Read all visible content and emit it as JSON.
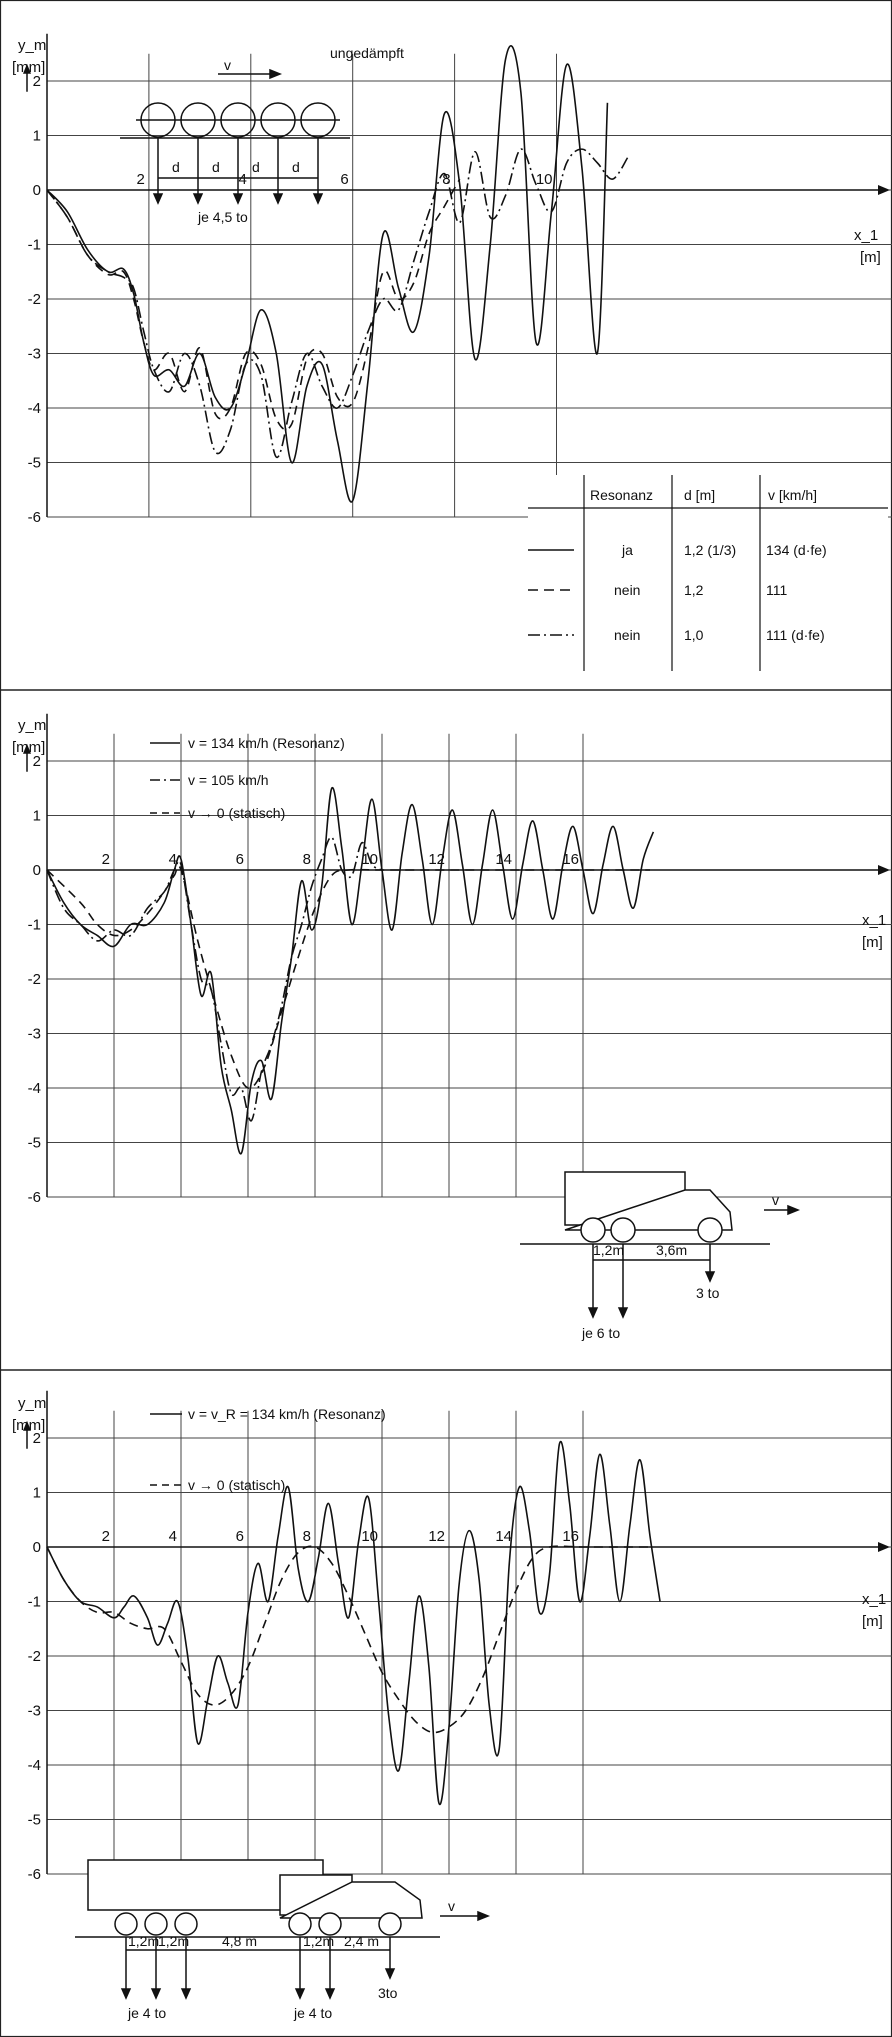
{
  "chart_data": [
    {
      "type": "line",
      "title": "ungedämpft",
      "ylabel": "y_m",
      "yunit": "[mm]",
      "xlabel": "x_1",
      "xunit": "[m]",
      "xlim": [
        0,
        11.8
      ],
      "ylim": [
        -6,
        2.5
      ],
      "x_ticks": [
        2,
        4,
        6,
        8,
        10
      ],
      "y_ticks": [
        2,
        1,
        0,
        -1,
        -2,
        -3,
        -4,
        -5,
        -6
      ],
      "grid": true,
      "series": [
        {
          "style": "solid",
          "x": [
            0,
            0.4,
            0.8,
            1.2,
            1.5,
            1.7,
            1.9,
            2.1,
            2.4,
            2.7,
            3.0,
            3.3,
            3.6,
            3.9,
            4.2,
            4.5,
            4.8,
            5.1,
            5.4,
            5.7,
            6.0,
            6.3,
            6.6,
            6.9,
            7.2,
            7.5,
            7.8,
            8.1,
            8.4,
            8.7,
            9.0,
            9.3,
            9.6,
            9.9,
            10.2,
            10.5,
            10.8,
            11.0
          ],
          "y": [
            0,
            -0.4,
            -1.1,
            -1.5,
            -1.45,
            -1.9,
            -2.8,
            -3.4,
            -3.3,
            -3.6,
            -3.0,
            -3.8,
            -4.0,
            -3.2,
            -2.2,
            -3.0,
            -5.0,
            -3.6,
            -3.2,
            -4.6,
            -5.7,
            -3.5,
            -0.8,
            -1.8,
            -2.6,
            -1.2,
            1.4,
            0.1,
            -3.1,
            -1.0,
            2.4,
            1.8,
            -2.8,
            -0.4,
            2.3,
            0.4,
            -3.0,
            1.6
          ]
        },
        {
          "style": "dashed",
          "x": [
            0,
            0.4,
            0.8,
            1.2,
            1.5,
            1.7,
            1.9,
            2.1,
            2.4,
            2.7,
            3.0,
            3.3,
            3.6,
            3.9,
            4.2,
            4.5,
            4.8,
            5.1,
            5.4,
            5.7,
            6.0,
            6.3,
            6.6,
            6.9,
            7.2,
            7.5,
            7.8,
            8.1
          ],
          "y": [
            0,
            -0.5,
            -1.2,
            -1.55,
            -1.5,
            -2.0,
            -2.8,
            -3.3,
            -3.0,
            -3.7,
            -2.9,
            -4.1,
            -4.0,
            -3.0,
            -3.2,
            -4.2,
            -4.3,
            -3.1,
            -3.0,
            -3.8,
            -3.9,
            -2.9,
            -1.5,
            -2.0,
            -1.7,
            -0.8,
            -0.3,
            0.2
          ]
        },
        {
          "style": "dashdot",
          "x": [
            0,
            0.4,
            0.8,
            1.2,
            1.5,
            1.7,
            1.9,
            2.1,
            2.4,
            2.7,
            3.0,
            3.3,
            3.6,
            3.9,
            4.2,
            4.5,
            4.8,
            5.1,
            5.4,
            5.7,
            6.0,
            6.3,
            6.6,
            6.9,
            7.2,
            7.5,
            7.8,
            8.1,
            8.4,
            8.7,
            9.0,
            9.3,
            9.6,
            9.9,
            10.2,
            10.5,
            10.8,
            11.1,
            11.4
          ],
          "y": [
            0,
            -0.5,
            -1.2,
            -1.5,
            -1.6,
            -1.8,
            -2.6,
            -3.3,
            -3.7,
            -3.0,
            -3.6,
            -4.8,
            -4.4,
            -3.2,
            -3.4,
            -4.9,
            -3.9,
            -3.0,
            -3.6,
            -4.0,
            -3.4,
            -2.6,
            -2.0,
            -2.2,
            -1.3,
            -0.4,
            0.3,
            -0.6,
            0.7,
            -0.5,
            -0.1,
            0.75,
            0.1,
            -0.4,
            0.5,
            0.75,
            0.5,
            0.2,
            0.6
          ]
        }
      ],
      "legend_table": {
        "headers": [
          "Resonanz",
          "d [m]",
          "v [km/h]"
        ],
        "rows": [
          {
            "style": "solid",
            "cells": [
              "ja",
              "1,2 (1/3)",
              "134 (d·fe)"
            ]
          },
          {
            "style": "dashed",
            "cells": [
              "nein",
              "1,2",
              "111"
            ]
          },
          {
            "style": "dashdot",
            "cells": [
              "nein",
              "1,0",
              "111 (d·fe)"
            ]
          }
        ]
      },
      "inset": {
        "arrow_label": "v",
        "axle_label": "d",
        "load_label": "je 4,5 to"
      }
    },
    {
      "type": "line",
      "ylabel": "y_m",
      "yunit": "[mm]",
      "xlabel": "x_1",
      "xunit": "[m]",
      "xlim": [
        0,
        18.3
      ],
      "ylim": [
        -6,
        2.5
      ],
      "x_ticks": [
        2,
        4,
        6,
        8,
        10,
        12,
        14,
        16
      ],
      "y_ticks": [
        2,
        1,
        0,
        -1,
        -2,
        -3,
        -4,
        -5,
        -6
      ],
      "grid": true,
      "series": [
        {
          "name": "v = 134 km/h (Resonanz)",
          "style": "solid",
          "x": [
            0,
            0.5,
            1.0,
            1.5,
            2.0,
            2.5,
            3.0,
            3.5,
            3.8,
            4.0,
            4.3,
            4.6,
            4.9,
            5.2,
            5.5,
            5.8,
            6.1,
            6.4,
            6.7,
            7.0,
            7.3,
            7.6,
            7.9,
            8.2,
            8.5,
            8.8,
            9.1,
            9.4,
            9.7,
            10.0,
            10.3,
            10.6,
            10.9,
            11.2,
            11.5,
            11.8,
            12.1,
            12.4,
            12.7,
            13.0,
            13.3,
            13.6,
            13.9,
            14.2,
            14.5,
            14.8,
            15.1,
            15.4,
            15.7,
            16.0,
            16.3,
            16.6,
            16.9,
            17.2,
            17.5,
            17.8,
            18.1
          ],
          "y": [
            0,
            -0.6,
            -1.0,
            -1.2,
            -1.4,
            -1.0,
            -1.0,
            -0.6,
            0,
            0.2,
            -1.0,
            -2.3,
            -1.9,
            -3.6,
            -4.4,
            -5.2,
            -3.9,
            -3.5,
            -4.2,
            -2.8,
            -1.6,
            -0.2,
            -1.1,
            -0.3,
            1.5,
            0.4,
            -1.0,
            0.1,
            1.3,
            0.0,
            -1.1,
            0.3,
            1.2,
            0.2,
            -1.0,
            0.2,
            1.1,
            0.1,
            -1.0,
            0.1,
            1.1,
            0.1,
            -0.9,
            0.1,
            0.9,
            0.0,
            -0.9,
            0.1,
            0.8,
            0.0,
            -0.8,
            0.1,
            0.8,
            0.0,
            -0.7,
            0.2,
            0.7
          ]
        },
        {
          "name": "v = 105 km/h",
          "style": "dashdot",
          "x": [
            0,
            0.5,
            1.0,
            1.5,
            2.0,
            2.5,
            3.0,
            3.5,
            3.8,
            4.0,
            4.3,
            4.6,
            4.9,
            5.2,
            5.5,
            5.8,
            6.1,
            6.4,
            6.7,
            7.0,
            7.3,
            7.6,
            7.9,
            8.2,
            8.5,
            8.8,
            9.1,
            9.4,
            9.7,
            10.0
          ],
          "y": [
            0,
            -0.7,
            -1.0,
            -1.3,
            -1.1,
            -1.2,
            -0.7,
            -0.4,
            0,
            0.1,
            -1.0,
            -2.0,
            -2.2,
            -3.2,
            -4.1,
            -4.0,
            -4.6,
            -3.7,
            -3.2,
            -2.5,
            -1.6,
            -1.0,
            -0.3,
            0.2,
            0.6,
            0.0,
            -0.1,
            0.5,
            0.1,
            0.0
          ]
        },
        {
          "name": "v → 0 (statisch)",
          "style": "dashed",
          "x": [
            0,
            1.0,
            1.5,
            2.0,
            2.5,
            3.0,
            3.5,
            3.8,
            4.0,
            4.5,
            5.0,
            5.5,
            6.0,
            6.5,
            7.0,
            7.5,
            8.0,
            8.5,
            9.0,
            10,
            12,
            14,
            16,
            18
          ],
          "y": [
            0,
            -0.6,
            -1.0,
            -1.2,
            -1.1,
            -0.8,
            -0.4,
            -0.1,
            0.0,
            -1.3,
            -2.4,
            -3.4,
            -4.0,
            -3.6,
            -2.6,
            -1.6,
            -0.7,
            -0.1,
            0,
            0,
            0,
            0,
            0,
            0
          ]
        }
      ],
      "inset": {
        "arrow_label": "v",
        "spacing_1": "1,2m",
        "spacing_2": "3,6m",
        "load_1": "je 6 to",
        "load_2": "3 to"
      }
    },
    {
      "type": "line",
      "ylabel": "y_m",
      "yunit": "[mm]",
      "xlabel": "x_1",
      "xunit": "[m]",
      "xlim": [
        0,
        18.3
      ],
      "ylim": [
        -6,
        2.5
      ],
      "x_ticks": [
        2,
        4,
        6,
        8,
        10,
        12,
        14,
        16
      ],
      "y_ticks": [
        2,
        1,
        0,
        -1,
        -2,
        -3,
        -4,
        -5,
        -6
      ],
      "grid": true,
      "series": [
        {
          "name": "v = v_R = 134 km/h (Resonanz)",
          "style": "solid",
          "x": [
            0,
            0.5,
            1.0,
            1.5,
            2.0,
            2.3,
            2.6,
            3.0,
            3.3,
            3.6,
            3.9,
            4.2,
            4.5,
            4.8,
            5.1,
            5.4,
            5.7,
            6.0,
            6.3,
            6.6,
            6.9,
            7.2,
            7.5,
            7.8,
            8.1,
            8.4,
            8.7,
            9.0,
            9.3,
            9.6,
            9.9,
            10.2,
            10.5,
            10.8,
            11.1,
            11.4,
            11.7,
            12.0,
            12.3,
            12.6,
            12.9,
            13.2,
            13.5,
            13.8,
            14.1,
            14.4,
            14.7,
            15.0,
            15.3,
            15.6,
            15.9,
            16.2,
            16.5,
            16.8,
            17.1,
            17.4,
            17.7,
            18.0,
            18.3
          ],
          "y": [
            0,
            -0.6,
            -1.0,
            -1.1,
            -1.3,
            -1.1,
            -0.9,
            -1.3,
            -1.8,
            -1.4,
            -1.0,
            -2.0,
            -3.6,
            -2.8,
            -2.0,
            -2.5,
            -2.9,
            -1.2,
            -0.3,
            -1.0,
            0.2,
            1.1,
            -0.4,
            -1.0,
            -0.2,
            0.8,
            -0.3,
            -1.3,
            0.1,
            0.9,
            -1.0,
            -3.1,
            -4.1,
            -2.5,
            -0.9,
            -2.2,
            -4.7,
            -3.3,
            -0.7,
            0.3,
            -0.6,
            -2.9,
            -3.7,
            -0.3,
            1.1,
            0.3,
            -1.2,
            -0.5,
            1.9,
            0.8,
            -1.0,
            0.2,
            1.7,
            0.4,
            -1.0,
            0.4,
            1.6,
            0.2,
            -1.0
          ]
        },
        {
          "name": "v → 0 (statisch)",
          "style": "dashed",
          "x": [
            0,
            0.5,
            1.0,
            1.5,
            2.0,
            2.5,
            3.0,
            3.5,
            4.0,
            4.5,
            5.0,
            5.5,
            6.0,
            6.5,
            7.0,
            7.5,
            8.0,
            8.5,
            9.0,
            9.5,
            10.0,
            10.5,
            11.0,
            11.5,
            12.0,
            12.5,
            13.0,
            13.5,
            14.0,
            14.5,
            15.0,
            16,
            17,
            18
          ],
          "y": [
            0,
            -0.6,
            -1.0,
            -1.2,
            -1.2,
            -1.4,
            -1.5,
            -1.5,
            -2.1,
            -2.7,
            -2.9,
            -2.7,
            -2.2,
            -1.4,
            -0.6,
            -0.1,
            0.0,
            -0.3,
            -0.9,
            -1.6,
            -2.3,
            -2.8,
            -3.2,
            -3.4,
            -3.3,
            -3.0,
            -2.4,
            -1.6,
            -0.8,
            -0.2,
            0,
            0,
            0,
            0
          ]
        }
      ],
      "inset": {
        "arrow_label": "v",
        "spacing_1": "1,2m",
        "spacing_2": "1,2m",
        "spacing_3": "4,8 m",
        "spacing_4": "1,2m",
        "spacing_5": "2,4 m",
        "load_1": "je 4 to",
        "load_2": "je 4 to",
        "load_3": "3to"
      }
    }
  ]
}
